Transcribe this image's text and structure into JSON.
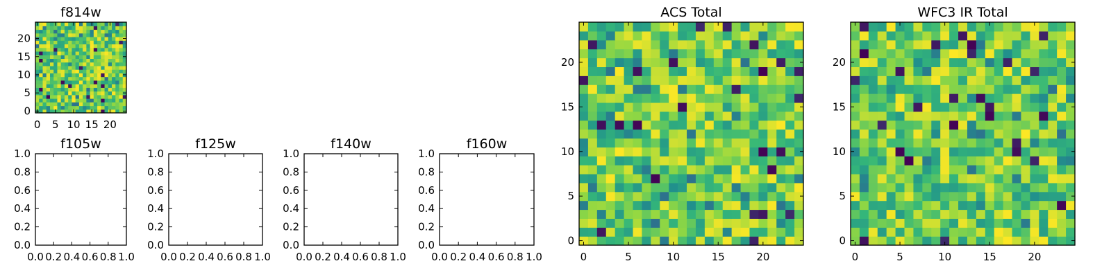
{
  "figure": {
    "colormap": "viridis",
    "colors": [
      "#440154",
      "#31688e",
      "#21918c",
      "#35b779",
      "#90d743",
      "#fde725"
    ]
  },
  "chart_data": [
    {
      "type": "heatmap",
      "title": "f814w",
      "xlabel": "",
      "ylabel": "",
      "grid_size": [
        25,
        25
      ],
      "xlim": [
        -0.5,
        24.5
      ],
      "ylim": [
        -0.5,
        24.5
      ],
      "xticks": [
        0,
        5,
        10,
        15,
        20
      ],
      "yticks": [
        0,
        5,
        10,
        15,
        20
      ],
      "seed": 11,
      "values": "25x25 random noise image (viridis)"
    },
    {
      "type": "heatmap",
      "title": "f105w",
      "xlabel": "",
      "ylabel": "",
      "xlim": [
        0.0,
        1.0
      ],
      "ylim": [
        0.0,
        1.0
      ],
      "xticks": [
        "0.0",
        "0.2",
        "0.4",
        "0.6",
        "0.8",
        "1.0"
      ],
      "yticks": [
        "0.0",
        "0.2",
        "0.4",
        "0.6",
        "0.8",
        "1.0"
      ],
      "values": []
    },
    {
      "type": "heatmap",
      "title": "f125w",
      "xlabel": "",
      "ylabel": "",
      "xlim": [
        0.0,
        1.0
      ],
      "ylim": [
        0.0,
        1.0
      ],
      "xticks": [
        "0.0",
        "0.2",
        "0.4",
        "0.6",
        "0.8",
        "1.0"
      ],
      "yticks": [
        "0.0",
        "0.2",
        "0.4",
        "0.6",
        "0.8",
        "1.0"
      ],
      "values": []
    },
    {
      "type": "heatmap",
      "title": "f140w",
      "xlabel": "",
      "ylabel": "",
      "xlim": [
        0.0,
        1.0
      ],
      "ylim": [
        0.0,
        1.0
      ],
      "xticks": [
        "0.0",
        "0.2",
        "0.4",
        "0.6",
        "0.8",
        "1.0"
      ],
      "yticks": [
        "0.0",
        "0.2",
        "0.4",
        "0.6",
        "0.8",
        "1.0"
      ],
      "values": []
    },
    {
      "type": "heatmap",
      "title": "f160w",
      "xlabel": "",
      "ylabel": "",
      "xlim": [
        0.0,
        1.0
      ],
      "ylim": [
        0.0,
        1.0
      ],
      "xticks": [
        "0.0",
        "0.2",
        "0.4",
        "0.6",
        "0.8",
        "1.0"
      ],
      "yticks": [
        "0.0",
        "0.2",
        "0.4",
        "0.6",
        "0.8",
        "1.0"
      ],
      "values": []
    },
    {
      "type": "heatmap",
      "title": "ACS Total",
      "xlabel": "",
      "ylabel": "",
      "grid_size": [
        25,
        25
      ],
      "xlim": [
        -0.5,
        24.5
      ],
      "ylim": [
        -0.5,
        24.5
      ],
      "xticks": [
        0,
        5,
        10,
        15,
        20
      ],
      "yticks": [
        0,
        5,
        10,
        15,
        20
      ],
      "seed": 29,
      "values": "25x25 random noise image (viridis)"
    },
    {
      "type": "heatmap",
      "title": "WFC3 IR Total",
      "xlabel": "",
      "ylabel": "",
      "grid_size": [
        25,
        25
      ],
      "xlim": [
        -0.5,
        24.5
      ],
      "ylim": [
        -0.5,
        24.5
      ],
      "xticks": [
        0,
        5,
        10,
        15,
        20
      ],
      "yticks": [
        0,
        5,
        10,
        15,
        20
      ],
      "seed": 47,
      "values": "25x25 random noise image (viridis)"
    }
  ]
}
